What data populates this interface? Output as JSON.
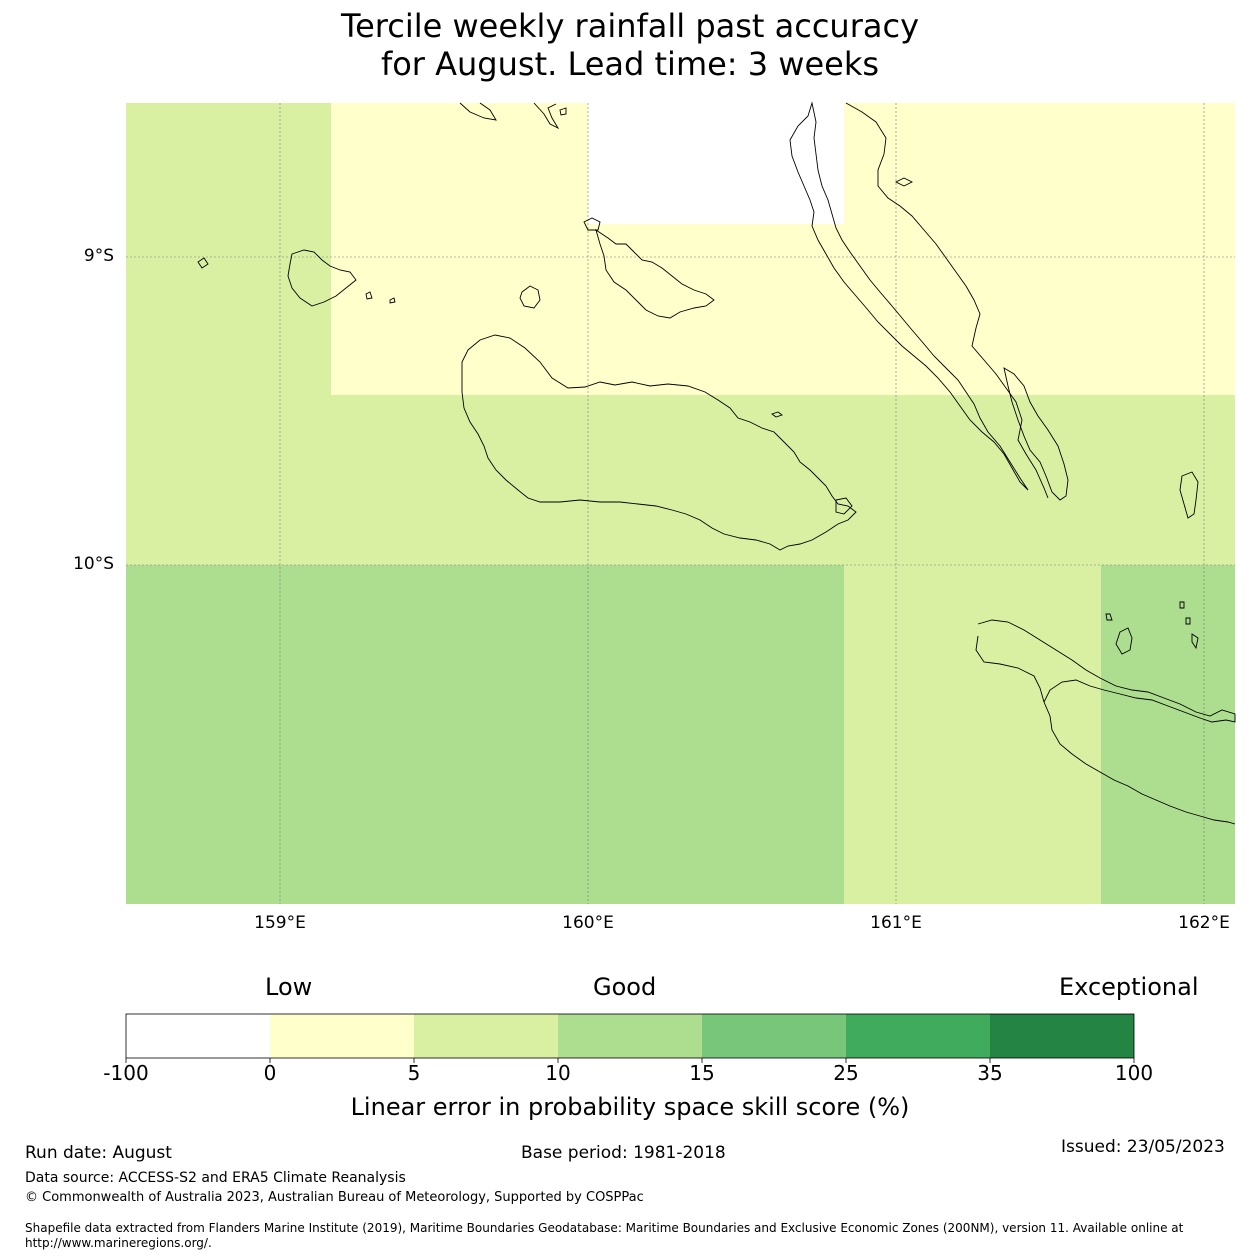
{
  "title": {
    "line1": "Tercile weekly rainfall past accuracy",
    "line2": "for August. Lead time: 3 weeks"
  },
  "map": {
    "lat_labels": [
      "9°S",
      "10°S"
    ],
    "lon_labels": [
      "159°E",
      "160°E",
      "161°E",
      "162°E"
    ],
    "colors": {
      "white": "#ffffff",
      "pale_yellow": "#ffffcc",
      "light_yellowgreen": "#d9f0a3",
      "light_green": "#addd8e",
      "mid_green": "#78c679",
      "green": "#41ab5d",
      "dark_green": "#238443"
    }
  },
  "colorbar": {
    "words": [
      "Low",
      "Good",
      "Exceptional"
    ],
    "ticks": [
      "-100",
      "0",
      "5",
      "10",
      "15",
      "25",
      "35",
      "100"
    ],
    "colors": [
      "#ffffff",
      "#ffffcc",
      "#d9f0a3",
      "#addd8e",
      "#78c679",
      "#41ab5d",
      "#238443"
    ],
    "label": "Linear error in probability space skill score (%)"
  },
  "footer": {
    "run_date": "Run date: August",
    "base_period": "Base period: 1981-2018",
    "issued": "Issued: 23/05/2023",
    "data_source": "Data source: ACCESS-S2 and ERA5 Climate Reanalysis",
    "copyright": "© Commonwealth of Australia 2023, Australian Bureau of Meteorology, Supported by COSPPac",
    "shapefile_line1": "Shapefile data extracted from Flanders Marine Institute (2019), Maritime Boundaries Geodatabase: Maritime Boundaries and Exclusive Economic Zones (200NM), version 11. Available online at",
    "shapefile_line2": "http://www.marineregions.org/."
  }
}
